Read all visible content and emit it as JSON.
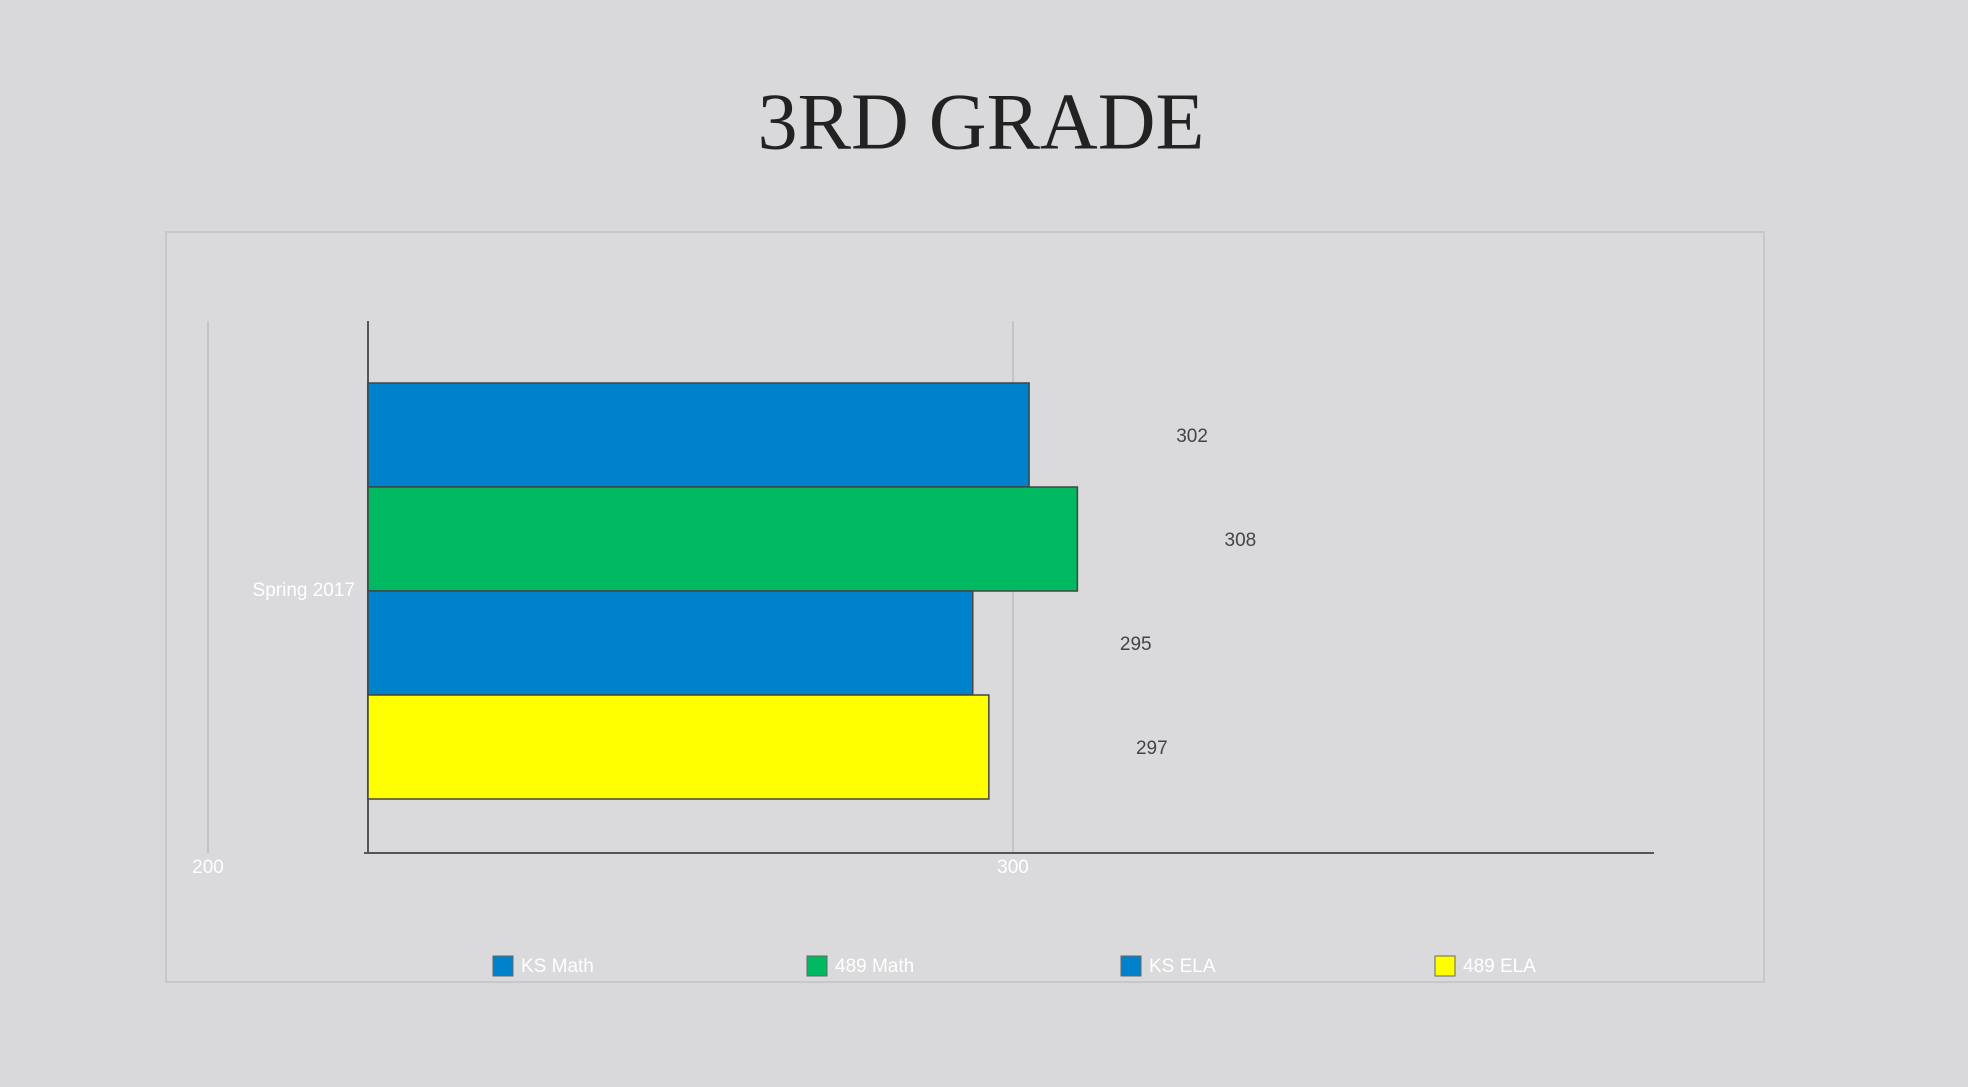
{
  "chart_data": {
    "type": "barh",
    "title": "3RD GRADE",
    "categories": [
      "Spring 2017"
    ],
    "series": [
      {
        "name": "KS Math",
        "color": "#0081cc",
        "values": [
          302
        ]
      },
      {
        "name": "489 Math",
        "color": "#00b960",
        "values": [
          308
        ]
      },
      {
        "name": "KS ELA",
        "color": "#0081cc",
        "values": [
          295
        ]
      },
      {
        "name": "489 ELA",
        "color": "#ffff00",
        "values": [
          297
        ]
      }
    ],
    "xlim": [
      200,
      380
    ],
    "xticks": [
      200,
      300
    ],
    "grid": true,
    "legend": "bottom"
  }
}
